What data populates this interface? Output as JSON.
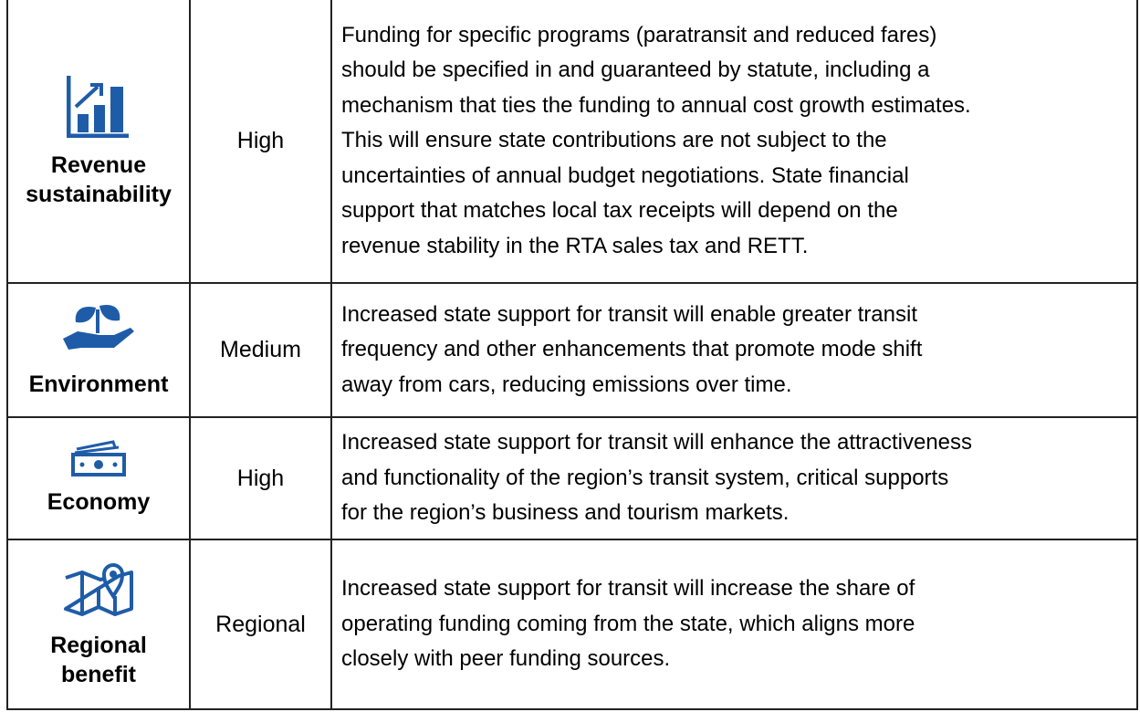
{
  "table": {
    "rows": [
      {
        "label": "Revenue sustainability",
        "rating": "High",
        "description": [
          "Funding for specific programs (paratransit and reduced fares)",
          "should be specified in and guaranteed by statute, including a",
          "mechanism that ties the funding to annual cost growth estimates.",
          "This will ensure state contributions are not subject to the",
          "uncertainties of annual budget negotiations. State financial",
          "support that matches local tax receipts will depend on the",
          "revenue stability in the RTA sales tax and RETT."
        ]
      },
      {
        "label": "Environment",
        "rating": "Medium",
        "description": [
          "Increased state support for transit will enable greater transit",
          "frequency and other enhancements that promote mode shift",
          "away from cars, reducing emissions over time."
        ]
      },
      {
        "label": "Economy",
        "rating": "High",
        "description": [
          "Increased state support for transit will enhance the attractiveness",
          "and functionality of the region’s transit system, critical supports",
          "for the region’s business and tourism markets."
        ]
      },
      {
        "label": "Regional benefit",
        "rating": "Regional",
        "description": [
          "Increased state support for transit will increase the share of",
          "operating funding coming from the state, which aligns more",
          "closely with peer funding sources."
        ]
      }
    ]
  }
}
